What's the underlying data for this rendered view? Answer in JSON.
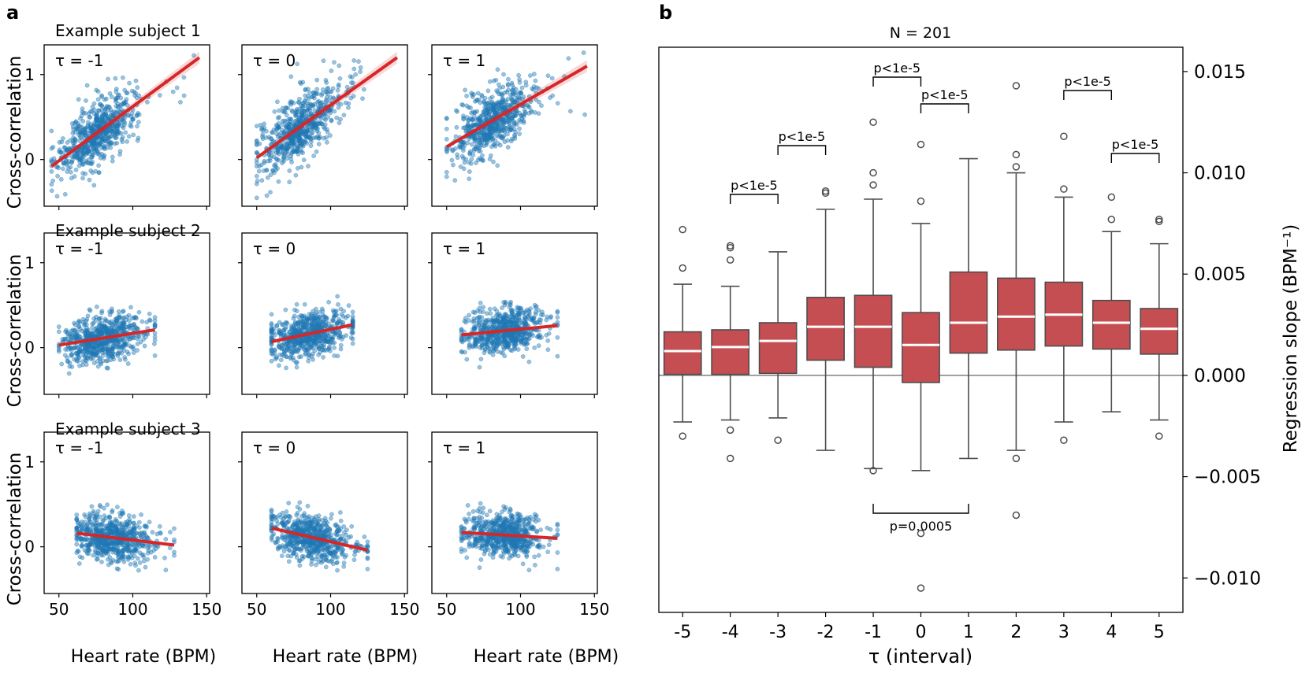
{
  "panel_a": {
    "letter": "a",
    "row_titles": [
      "Example subject 1",
      "Example subject 2",
      "Example subject 3"
    ],
    "ylabel": "Cross-correlation",
    "xlabel": "Heart rate (BPM)",
    "tau_labels": [
      "τ = -1",
      "τ = 0",
      "τ = 1"
    ],
    "x_ticks": [
      "50",
      "100",
      "150"
    ],
    "y_ticks": [
      "0",
      "1"
    ]
  },
  "panel_b": {
    "letter": "b",
    "title": "N = 201",
    "ylabel": "Regression slope (BPM⁻¹)",
    "xlabel": "τ (interval)",
    "y_ticks": [
      "0.015",
      "0.010",
      "0.005",
      "0.000",
      "−0.005",
      "−0.010"
    ],
    "annotations": [
      "p<1e-5",
      "p<1e-5",
      "p<1e-5",
      "p<1e-5",
      "p<1e-5",
      "p<1e-5",
      "p=0.0005"
    ]
  },
  "colors": {
    "scatter": "#1f77b4",
    "fit": "#d62728",
    "box": "#c44e52",
    "median": "#ffffff",
    "whisker": "#4d4d4d",
    "zero_line": "#808080"
  },
  "chart_data": [
    {
      "type": "scatter",
      "title": "Example subject 1",
      "xlabel": "Heart rate (BPM)",
      "ylabel": "Cross-correlation",
      "xlim": [
        40,
        150
      ],
      "ylim": [
        -0.5,
        1.3
      ],
      "panels": [
        {
          "tau": -1,
          "fit": {
            "x": [
              45,
              145
            ],
            "y": [
              -0.08,
              1.2
            ]
          },
          "x_range": [
            45,
            145
          ],
          "center": [
            75,
            0.3
          ]
        },
        {
          "tau": 0,
          "fit": {
            "x": [
              50,
              145
            ],
            "y": [
              0.02,
              1.2
            ]
          },
          "x_range": [
            50,
            145
          ],
          "center": [
            78,
            0.35
          ]
        },
        {
          "tau": 1,
          "fit": {
            "x": [
              50,
              145
            ],
            "y": [
              0.15,
              1.1
            ]
          },
          "x_range": [
            50,
            145
          ],
          "center": [
            80,
            0.4
          ]
        }
      ]
    },
    {
      "type": "scatter",
      "title": "Example subject 2",
      "xlabel": "Heart rate (BPM)",
      "ylabel": "Cross-correlation",
      "xlim": [
        40,
        150
      ],
      "ylim": [
        -0.5,
        1.3
      ],
      "panels": [
        {
          "tau": -1,
          "fit": {
            "x": [
              50,
              115
            ],
            "y": [
              0.03,
              0.21
            ]
          },
          "x_range": [
            50,
            115
          ],
          "center": [
            78,
            0.12
          ]
        },
        {
          "tau": 0,
          "fit": {
            "x": [
              60,
              115
            ],
            "y": [
              0.07,
              0.27
            ]
          },
          "x_range": [
            60,
            115
          ],
          "center": [
            83,
            0.15
          ]
        },
        {
          "tau": 1,
          "fit": {
            "x": [
              60,
              125
            ],
            "y": [
              0.15,
              0.26
            ]
          },
          "x_range": [
            60,
            125
          ],
          "center": [
            88,
            0.18
          ]
        }
      ]
    },
    {
      "type": "scatter",
      "title": "Example subject 3",
      "xlabel": "Heart rate (BPM)",
      "ylabel": "Cross-correlation",
      "xlim": [
        40,
        150
      ],
      "ylim": [
        -0.5,
        1.3
      ],
      "panels": [
        {
          "tau": -1,
          "fit": {
            "x": [
              62,
              128
            ],
            "y": [
              0.16,
              0.02
            ]
          },
          "x_range": [
            62,
            128
          ],
          "center": [
            85,
            0.12
          ]
        },
        {
          "tau": 0,
          "fit": {
            "x": [
              60,
              125
            ],
            "y": [
              0.22,
              -0.04
            ]
          },
          "x_range": [
            60,
            125
          ],
          "center": [
            85,
            0.15
          ]
        },
        {
          "tau": 1,
          "fit": {
            "x": [
              60,
              125
            ],
            "y": [
              0.17,
              0.1
            ]
          },
          "x_range": [
            60,
            125
          ],
          "center": [
            88,
            0.2
          ]
        }
      ]
    },
    {
      "type": "box",
      "title": "N = 201",
      "xlabel": "τ (interval)",
      "ylabel": "Regression slope (BPM⁻¹)",
      "ylim": [
        -0.0117,
        0.0162
      ],
      "categories": [
        "-5",
        "-4",
        "-3",
        "-2",
        "-1",
        "0",
        "1",
        "2",
        "3",
        "4",
        "5"
      ],
      "boxes": [
        {
          "q1": 5e-05,
          "median": 0.0012,
          "q3": 0.00215,
          "whislo": -0.0023,
          "whishi": 0.0045,
          "fliers": [
            0.0072,
            0.0053,
            -0.003
          ]
        },
        {
          "q1": 5e-05,
          "median": 0.0014,
          "q3": 0.00225,
          "whislo": -0.0022,
          "whishi": 0.0044,
          "fliers": [
            0.0064,
            0.0063,
            0.0057,
            -0.0027,
            -0.0041
          ]
        },
        {
          "q1": 0.0001,
          "median": 0.0017,
          "q3": 0.0026,
          "whislo": -0.0021,
          "whishi": 0.0061,
          "fliers": [
            -0.0032
          ]
        },
        {
          "q1": 0.00075,
          "median": 0.0024,
          "q3": 0.00385,
          "whislo": -0.0037,
          "whishi": 0.0082,
          "fliers": [
            0.0091,
            0.009
          ]
        },
        {
          "q1": 0.0004,
          "median": 0.0024,
          "q3": 0.00395,
          "whislo": -0.0046,
          "whishi": 0.0087,
          "fliers": [
            0.0125,
            0.01,
            0.0094,
            -0.0047
          ]
        },
        {
          "q1": -0.00035,
          "median": 0.0015,
          "q3": 0.0031,
          "whislo": -0.0047,
          "whishi": 0.0075,
          "fliers": [
            0.0114,
            0.0086,
            -0.0078,
            -0.0105
          ]
        },
        {
          "q1": 0.0011,
          "median": 0.0026,
          "q3": 0.0051,
          "whislo": -0.0041,
          "whishi": 0.0107,
          "fliers": []
        },
        {
          "q1": 0.00125,
          "median": 0.0029,
          "q3": 0.0048,
          "whislo": -0.0037,
          "whishi": 0.01,
          "fliers": [
            0.0143,
            0.0109,
            0.0103,
            -0.0041,
            -0.0069
          ]
        },
        {
          "q1": 0.00145,
          "median": 0.003,
          "q3": 0.0046,
          "whislo": -0.0023,
          "whishi": 0.0088,
          "fliers": [
            0.0118,
            0.0092,
            -0.0032
          ]
        },
        {
          "q1": 0.0013,
          "median": 0.0026,
          "q3": 0.0037,
          "whislo": -0.0018,
          "whishi": 0.0071,
          "fliers": [
            0.0088,
            0.0077
          ]
        },
        {
          "q1": 0.00105,
          "median": 0.0023,
          "q3": 0.0033,
          "whislo": -0.0022,
          "whishi": 0.0065,
          "fliers": [
            0.0077,
            0.0076,
            -0.003
          ]
        }
      ],
      "brackets": [
        {
          "from": "-4",
          "to": "-3",
          "label": "p<1e-5",
          "position": "above"
        },
        {
          "from": "-3",
          "to": "-2",
          "label": "p<1e-5",
          "position": "above"
        },
        {
          "from": "-1",
          "to": "0",
          "label": "p<1e-5",
          "position": "above"
        },
        {
          "from": "0",
          "to": "1",
          "label": "p<1e-5",
          "position": "above"
        },
        {
          "from": "3",
          "to": "4",
          "label": "p<1e-5",
          "position": "above"
        },
        {
          "from": "4",
          "to": "5",
          "label": "p<1e-5",
          "position": "above"
        },
        {
          "from": "-1",
          "to": "1",
          "label": "p=0.0005",
          "position": "below"
        }
      ]
    }
  ]
}
